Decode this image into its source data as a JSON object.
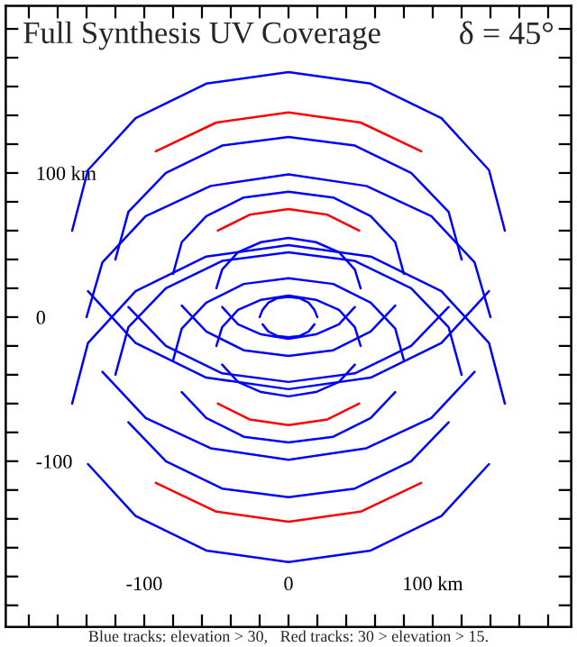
{
  "chart_data": {
    "type": "line",
    "title": "Full Synthesis UV Coverage",
    "annotations": [
      "δ = 45°",
      "Blue tracks: elevation > 30,   Red tracks: 30 > elevation > 15."
    ],
    "xlim": [
      -196,
      196
    ],
    "ylim": [
      -215,
      216
    ],
    "xticks": [
      {
        "value": -180,
        "label": null
      },
      {
        "value": -160,
        "label": null
      },
      {
        "value": -140,
        "label": null
      },
      {
        "value": -120,
        "label": null
      },
      {
        "value": -100,
        "label": "-100"
      },
      {
        "value": -80,
        "label": null
      },
      {
        "value": -60,
        "label": null
      },
      {
        "value": -40,
        "label": null
      },
      {
        "value": -20,
        "label": null
      },
      0,
      {
        "value": 20,
        "label": null
      },
      {
        "value": 40,
        "label": null
      },
      {
        "value": 60,
        "label": null
      },
      {
        "value": 80,
        "label": null
      },
      {
        "value": 100,
        "label": "100 km"
      },
      {
        "value": 120,
        "label": null
      },
      {
        "value": 140,
        "label": null
      },
      {
        "value": 160,
        "label": null
      },
      {
        "value": 180,
        "label": null
      }
    ],
    "yticks": [
      {
        "value": -200,
        "label": null
      },
      {
        "value": -180,
        "label": null
      },
      {
        "value": -160,
        "label": null
      },
      {
        "value": -140,
        "label": null
      },
      {
        "value": -120,
        "label": null
      },
      {
        "value": -100,
        "label": "-100"
      },
      {
        "value": -80,
        "label": null
      },
      {
        "value": -60,
        "label": null
      },
      {
        "value": -40,
        "label": null
      },
      {
        "value": -20,
        "label": null
      },
      0,
      {
        "value": 20,
        "label": null
      },
      {
        "value": 40,
        "label": null
      },
      {
        "value": 60,
        "label": null
      },
      {
        "value": 80,
        "label": null
      },
      {
        "value": 100,
        "label": "100 km"
      },
      {
        "value": 120,
        "label": null
      },
      {
        "value": 140,
        "label": null
      },
      {
        "value": 160,
        "label": null
      },
      {
        "value": 180,
        "label": null
      },
      {
        "value": 200,
        "label": null
      }
    ],
    "series": [
      {
        "color": "#0000ff",
        "x": [
          150,
          139,
          106,
          57,
          0,
          -57,
          -106,
          -139,
          -150
        ],
        "values": [
          60,
          102,
          138,
          162,
          170,
          162,
          138,
          102,
          60
        ]
      },
      {
        "color": "#0000ff",
        "x": [
          -139,
          -106,
          -57,
          0,
          57,
          106,
          139
        ],
        "values": [
          18,
          -18,
          -42,
          -50,
          -42,
          -18,
          18
        ]
      },
      {
        "color": "#0000ff",
        "x": [
          150,
          139,
          106,
          57,
          0,
          -57,
          -106,
          -139,
          -150
        ],
        "values": [
          -60,
          -18,
          18,
          42,
          50,
          42,
          18,
          -18,
          -60
        ]
      },
      {
        "color": "#0000ff",
        "x": [
          -139,
          -106,
          -57,
          0,
          57,
          106,
          139
        ],
        "values": [
          -102,
          -138,
          -162,
          -170,
          -162,
          -138,
          -102
        ]
      },
      {
        "color": "#0000ff",
        "x": [
          120,
          111,
          85,
          46,
          0,
          -46,
          -85,
          -111,
          -120
        ],
        "values": [
          40,
          73,
          100,
          119,
          125,
          119,
          100,
          73,
          40
        ]
      },
      {
        "color": "#0000ff",
        "x": [
          -111,
          -85,
          -46,
          0,
          46,
          85,
          111
        ],
        "values": [
          7,
          -20,
          -39,
          -45,
          -39,
          -20,
          7
        ]
      },
      {
        "color": "#0000ff",
        "x": [
          120,
          111,
          85,
          46,
          0,
          -46,
          -85,
          -111,
          -120
        ],
        "values": [
          -40,
          -7,
          20,
          39,
          45,
          39,
          20,
          -7,
          -40
        ]
      },
      {
        "color": "#0000ff",
        "x": [
          -111,
          -85,
          -46,
          0,
          46,
          85,
          111
        ],
        "values": [
          -73,
          -100,
          -119,
          -125,
          -119,
          -100,
          -73
        ]
      },
      {
        "color": "#0000ff",
        "x": [
          80,
          74,
          57,
          31,
          0,
          -31,
          -57,
          -74,
          -80
        ],
        "values": [
          30,
          52,
          70,
          83,
          87,
          83,
          70,
          52,
          30
        ]
      },
      {
        "color": "#0000ff",
        "x": [
          -74,
          -57,
          -31,
          0,
          31,
          57,
          74
        ],
        "values": [
          8,
          -10,
          -23,
          -27,
          -23,
          -10,
          8
        ]
      },
      {
        "color": "#0000ff",
        "x": [
          80,
          74,
          57,
          31,
          0,
          -31,
          -57,
          -74,
          -80
        ],
        "values": [
          -30,
          -8,
          10,
          23,
          27,
          23,
          10,
          -8,
          -30
        ]
      },
      {
        "color": "#0000ff",
        "x": [
          -74,
          -57,
          -31,
          0,
          31,
          57,
          74
        ],
        "values": [
          -52,
          -70,
          -83,
          -87,
          -83,
          -70,
          -52
        ]
      },
      {
        "color": "#0000ff",
        "x": [
          50,
          46,
          35,
          19,
          0,
          -19,
          -35,
          -46,
          -50
        ],
        "values": [
          20,
          33,
          45,
          52,
          55,
          52,
          45,
          33,
          20
        ]
      },
      {
        "color": "#0000ff",
        "x": [
          -46,
          -35,
          -19,
          0,
          19,
          35,
          46
        ],
        "values": [
          7,
          -5,
          -12,
          -15,
          -12,
          -5,
          7
        ]
      },
      {
        "color": "#0000ff",
        "x": [
          50,
          46,
          35,
          19,
          0,
          -19,
          -35,
          -46,
          -50
        ],
        "values": [
          -20,
          -7,
          5,
          12,
          15,
          12,
          5,
          -7,
          -20
        ]
      },
      {
        "color": "#0000ff",
        "x": [
          -46,
          -35,
          -19,
          0,
          19,
          35,
          46
        ],
        "values": [
          -33,
          -45,
          -52,
          -55,
          -52,
          -45,
          -33
        ]
      },
      {
        "color": "#0000ff",
        "x": [
          140,
          129,
          99,
          54,
          0,
          -54,
          -99,
          -129,
          -140
        ],
        "values": [
          0,
          38,
          70,
          91,
          99,
          91,
          70,
          38,
          0
        ]
      },
      {
        "color": "#0000ff",
        "x": [
          -129,
          -99,
          -54,
          0,
          54,
          99,
          129
        ],
        "values": [
          -38,
          -70,
          -91,
          -99,
          -91,
          -70,
          -38
        ]
      },
      {
        "color": "#0000ff",
        "x": [
          20,
          18,
          14,
          8,
          0,
          -8,
          -14,
          -18,
          -20
        ],
        "values": [
          0,
          5,
          10,
          13,
          14,
          13,
          10,
          5,
          0
        ]
      },
      {
        "color": "#0000ff",
        "x": [
          -18,
          -14,
          -8,
          0,
          8,
          14,
          18
        ],
        "values": [
          -5,
          -10,
          -13,
          -14,
          -13,
          -10,
          -5
        ]
      },
      {
        "color": "#ff0000",
        "x": [
          92,
          50,
          0,
          -50,
          -92
        ],
        "values": [
          115,
          135,
          142,
          135,
          115
        ]
      },
      {
        "color": "#ff0000",
        "x": [
          49,
          27,
          0,
          -27,
          -49
        ],
        "values": [
          60,
          71,
          75,
          71,
          60
        ]
      },
      {
        "color": "#ff0000",
        "x": [
          -92,
          -50,
          0,
          50,
          92
        ],
        "values": [
          -115,
          -135,
          -142,
          -135,
          -115
        ]
      },
      {
        "color": "#ff0000",
        "x": [
          -49,
          -27,
          0,
          27,
          49
        ],
        "values": [
          -60,
          -71,
          -75,
          -71,
          -60
        ]
      }
    ]
  }
}
